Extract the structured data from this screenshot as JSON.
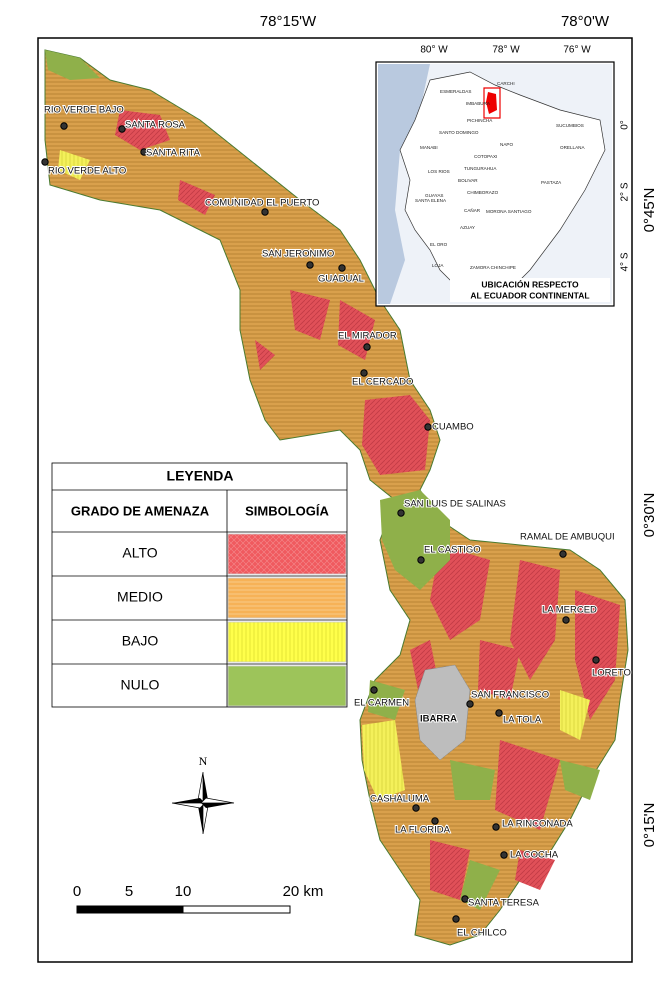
{
  "coordinates": {
    "top": [
      "78°15'W",
      "78°0'W"
    ],
    "right": [
      "0°45'N",
      "0°30'N",
      "0°15'N"
    ]
  },
  "places": [
    "RIO VERDE BAJO",
    "SANTA ROSA",
    "SANTA RITA",
    "RIO VERDE ALTO",
    "COMUNIDAD EL PUERTO",
    "SAN JERONIMO",
    "GUADUAL",
    "EL MIRADOR",
    "EL CERCADO",
    "CUAMBO",
    "SAN LUIS DE SALINAS",
    "EL CASTIGO",
    "RAMAL DE AMBUQUI",
    "LA MERCED",
    "LORETO",
    "EL CARMEN",
    "SAN FRANCISCO",
    "LA TOLA",
    "CASHALUMA",
    "LA FLORIDA",
    "LA RINCONADA",
    "LA COCHA",
    "SANTA TERESA",
    "EL CHILCO"
  ],
  "city": "IBARRA",
  "legend": {
    "title": "LEYENDA",
    "headers": [
      "GRADO DE AMENAZA",
      "SIMBOLOGÍA"
    ],
    "rows": [
      "ALTO",
      "MEDIO",
      "BAJO",
      "NULO"
    ]
  },
  "north": "N",
  "scale_bar": {
    "labels": [
      "0",
      "5",
      "10",
      "20 km"
    ]
  },
  "inset": {
    "lon_labels": [
      "80° W",
      "78° W",
      "76° W"
    ],
    "lat_labels": [
      "0°",
      "2° S",
      "4° S"
    ],
    "provinces": [
      "ESMERALDAS",
      "CARCHI",
      "IMBABURA",
      "PICHINCHA",
      "SUCUMBIOS",
      "SANTO DOMINGO",
      "NAPO",
      "ORELLANA",
      "MANABI",
      "COTOPAXI",
      "LOS RIOS",
      "TUNGURAHUA",
      "BOLIVAR",
      "PASTAZA",
      "GUAYAS",
      "CHIMBORAZO",
      "SANTA ELENA",
      "CAÑAR",
      "MORONA SANTIAGO",
      "AZUAY",
      "EL ORO",
      "LOJA",
      "ZAMORA CHINCHIPE"
    ],
    "caption": [
      "UBICACIÓN RESPECTO",
      "AL ECUADOR CONTINENTAL"
    ]
  }
}
